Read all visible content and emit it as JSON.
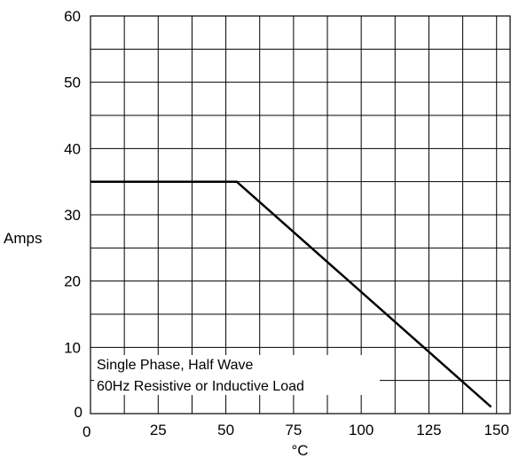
{
  "chart_data": {
    "type": "line",
    "xlabel": "°C",
    "ylabel": "Amps",
    "xlim": [
      0,
      155
    ],
    "ylim": [
      0,
      60
    ],
    "grid": true,
    "x_ticks": [
      "0",
      "25",
      "50",
      "75",
      "100",
      "125",
      "150"
    ],
    "y_ticks": [
      "0",
      "10",
      "20",
      "30",
      "40",
      "50",
      "60"
    ],
    "series": [
      {
        "x": [
          0,
          54,
          148
        ],
        "y": [
          35,
          35,
          1
        ]
      }
    ],
    "annotations": [
      "Single Phase, Half Wave",
      "60Hz Resistive or Inductive Load"
    ]
  }
}
